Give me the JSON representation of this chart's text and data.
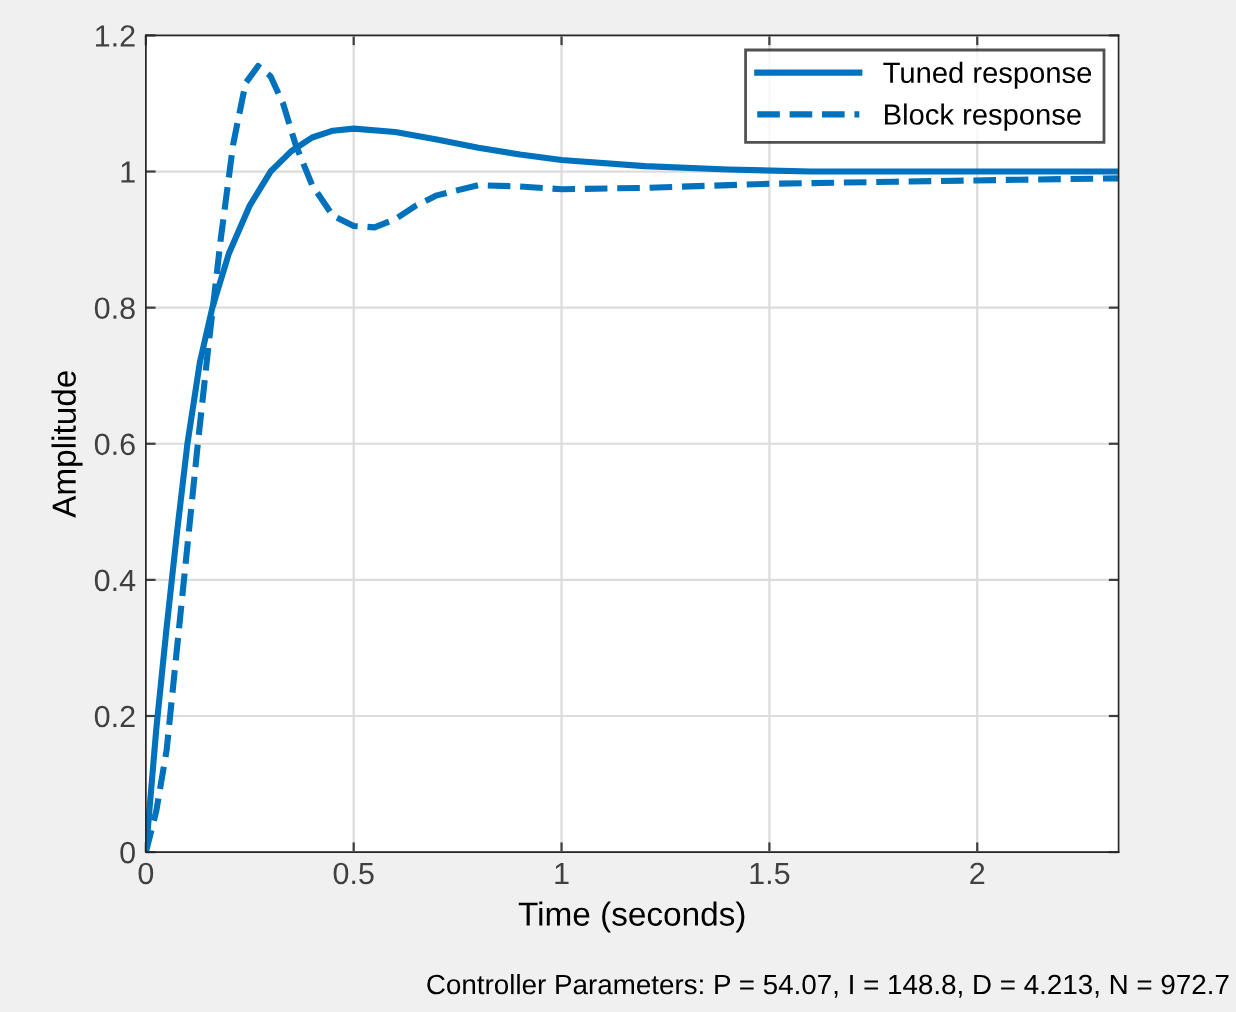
{
  "chart_data": {
    "type": "line",
    "xlabel": "Time (seconds)",
    "ylabel": "Amplitude",
    "xlim": [
      0,
      2.34
    ],
    "ylim": [
      0,
      1.2
    ],
    "xticks": [
      0,
      0.5,
      1,
      1.5,
      2
    ],
    "yticks": [
      0,
      0.2,
      0.4,
      0.6,
      0.8,
      1,
      1.2
    ],
    "grid": true,
    "legend": "top right",
    "series": [
      {
        "name": "Tuned response",
        "color": "#0072bd",
        "line_style": "solid",
        "x": [
          0,
          0.025,
          0.05,
          0.075,
          0.1,
          0.13,
          0.16,
          0.2,
          0.25,
          0.3,
          0.35,
          0.4,
          0.45,
          0.5,
          0.6,
          0.7,
          0.8,
          0.9,
          1.0,
          1.2,
          1.4,
          1.6,
          1.8,
          2.0,
          2.2,
          2.34
        ],
        "values": [
          0,
          0.18,
          0.33,
          0.47,
          0.6,
          0.72,
          0.8,
          0.88,
          0.95,
          1.0,
          1.03,
          1.05,
          1.06,
          1.063,
          1.058,
          1.047,
          1.035,
          1.025,
          1.017,
          1.008,
          1.003,
          1.0,
          1.0,
          1.0,
          1.0,
          1.0
        ]
      },
      {
        "name": "Block response",
        "color": "#0072bd",
        "line_style": "dashed",
        "x": [
          0,
          0.025,
          0.05,
          0.075,
          0.1,
          0.125,
          0.15,
          0.18,
          0.21,
          0.24,
          0.27,
          0.3,
          0.33,
          0.36,
          0.4,
          0.45,
          0.5,
          0.55,
          0.6,
          0.65,
          0.7,
          0.8,
          0.9,
          1.0,
          1.2,
          1.5,
          1.8,
          2.1,
          2.34
        ],
        "values": [
          0,
          0.06,
          0.15,
          0.3,
          0.45,
          0.6,
          0.74,
          0.9,
          1.04,
          1.13,
          1.155,
          1.14,
          1.1,
          1.04,
          0.98,
          0.935,
          0.92,
          0.918,
          0.93,
          0.95,
          0.965,
          0.98,
          0.978,
          0.974,
          0.976,
          0.982,
          0.985,
          0.988,
          0.99
        ]
      }
    ],
    "annotations": [
      "Controller Parameters: P = 54.07, I = 148.8, D = 4.213, N = 972.7"
    ]
  }
}
